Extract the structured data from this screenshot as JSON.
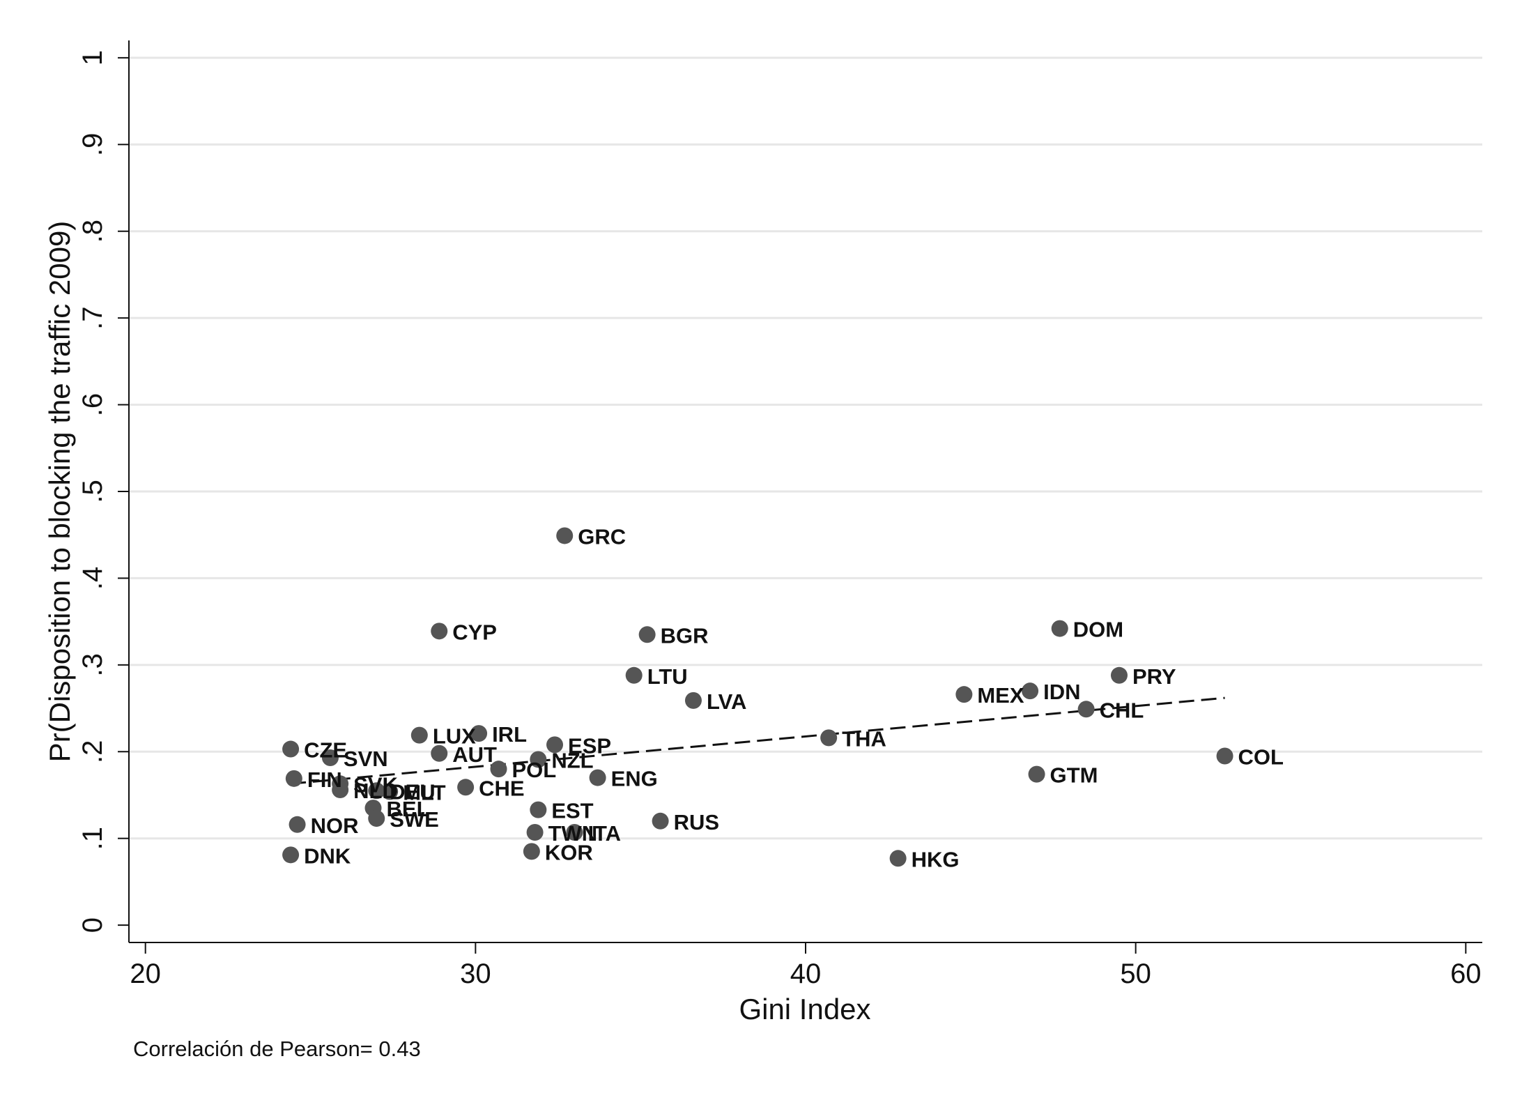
{
  "chart_data": {
    "type": "scatter",
    "title": "",
    "xlabel": "Gini Index",
    "ylabel": "Pr(Disposition to blocking the traffic 2009)",
    "xlim": [
      19.5,
      60.5
    ],
    "ylim": [
      -0.02,
      1.02
    ],
    "x_ticks": [
      20,
      30,
      40,
      50,
      60
    ],
    "x_tick_labels": [
      "20",
      "30",
      "40",
      "50",
      "60"
    ],
    "y_ticks": [
      0,
      0.1,
      0.2,
      0.3,
      0.4,
      0.5,
      0.6,
      0.7,
      0.8,
      0.9,
      1
    ],
    "y_tick_labels": [
      "0",
      ".1",
      ".2",
      ".3",
      ".4",
      ".5",
      ".6",
      ".7",
      ".8",
      ".9",
      "1"
    ],
    "grid": true,
    "legend": "none",
    "note": "Correlación de Pearson= 0.43",
    "point_color": "#555555",
    "points": [
      {
        "label": "GRC",
        "x": 32.7,
        "y": 0.449
      },
      {
        "label": "CYP",
        "x": 28.9,
        "y": 0.339
      },
      {
        "label": "BGR",
        "x": 35.2,
        "y": 0.335
      },
      {
        "label": "DOM",
        "x": 47.7,
        "y": 0.342
      },
      {
        "label": "LTU",
        "x": 34.8,
        "y": 0.288
      },
      {
        "label": "PRY",
        "x": 49.5,
        "y": 0.288
      },
      {
        "label": "LVA",
        "x": 36.6,
        "y": 0.259
      },
      {
        "label": "MEX",
        "x": 44.8,
        "y": 0.266
      },
      {
        "label": "IDN",
        "x": 46.8,
        "y": 0.27
      },
      {
        "label": "CHL",
        "x": 48.5,
        "y": 0.249
      },
      {
        "label": "THA",
        "x": 40.7,
        "y": 0.216
      },
      {
        "label": "COL",
        "x": 52.7,
        "y": 0.195
      },
      {
        "label": "GTM",
        "x": 47.0,
        "y": 0.174
      },
      {
        "label": "HKG",
        "x": 42.8,
        "y": 0.077
      },
      {
        "label": "RUS",
        "x": 35.6,
        "y": 0.12
      },
      {
        "label": "CZE",
        "x": 24.4,
        "y": 0.203
      },
      {
        "label": "SVN",
        "x": 25.6,
        "y": 0.193
      },
      {
        "label": "FIN",
        "x": 24.5,
        "y": 0.169
      },
      {
        "label": "SVK",
        "x": 25.9,
        "y": 0.163
      },
      {
        "label": "NLD",
        "x": 25.9,
        "y": 0.156
      },
      {
        "label": "DEU",
        "x": 27.0,
        "y": 0.155
      },
      {
        "label": "MLT",
        "x": 27.4,
        "y": 0.154
      },
      {
        "label": "BEL",
        "x": 26.9,
        "y": 0.135
      },
      {
        "label": "SWE",
        "x": 27.0,
        "y": 0.123
      },
      {
        "label": "NOR",
        "x": 24.6,
        "y": 0.116
      },
      {
        "label": "DNK",
        "x": 24.4,
        "y": 0.081
      },
      {
        "label": "LUX",
        "x": 28.3,
        "y": 0.219
      },
      {
        "label": "IRL",
        "x": 30.1,
        "y": 0.221
      },
      {
        "label": "AUT",
        "x": 28.9,
        "y": 0.198
      },
      {
        "label": "CHE",
        "x": 29.7,
        "y": 0.159
      },
      {
        "label": "POL",
        "x": 30.7,
        "y": 0.18
      },
      {
        "label": "NZL",
        "x": 31.9,
        "y": 0.191
      },
      {
        "label": "ESP",
        "x": 32.4,
        "y": 0.208
      },
      {
        "label": "ENG",
        "x": 33.7,
        "y": 0.17
      },
      {
        "label": "EST",
        "x": 31.9,
        "y": 0.133
      },
      {
        "label": "TWN",
        "x": 31.8,
        "y": 0.107
      },
      {
        "label": "ITA",
        "x": 33.0,
        "y": 0.107
      },
      {
        "label": "KOR",
        "x": 31.7,
        "y": 0.085
      }
    ],
    "fit_line": {
      "x": [
        24.4,
        52.7
      ],
      "y": [
        0.163,
        0.262
      ],
      "style": "dashed"
    }
  }
}
